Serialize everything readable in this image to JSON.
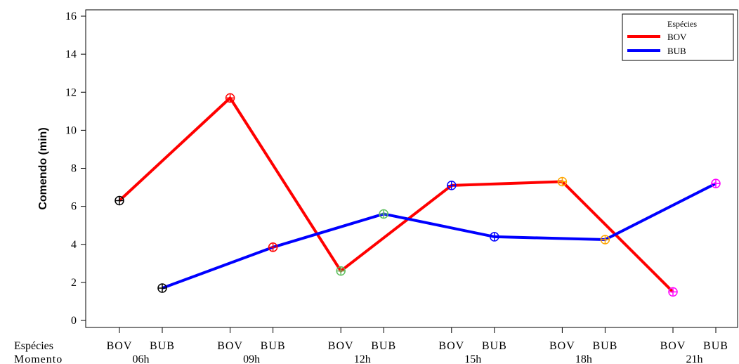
{
  "chart_data": {
    "type": "line",
    "ylabel": "Comendo (min)",
    "ylim": [
      0,
      16
    ],
    "yticks": [
      0,
      2,
      4,
      6,
      8,
      10,
      12,
      14,
      16
    ],
    "grid": false,
    "row_labels": [
      "Espécies",
      "Momento"
    ],
    "groups": [
      "06h",
      "09h",
      "12h",
      "15h",
      "18h",
      "21h"
    ],
    "species": [
      "BOV",
      "BUB"
    ],
    "series": [
      {
        "name": "BOV",
        "color": "#ff0000",
        "values": [
          6.3,
          11.7,
          2.6,
          7.1,
          7.3,
          1.5
        ]
      },
      {
        "name": "BUB",
        "color": "#0000ff",
        "values": [
          1.7,
          3.85,
          5.6,
          4.4,
          4.25,
          7.2
        ]
      }
    ],
    "point_colors": [
      "#000000",
      "#ff0000",
      "#5fbf5f",
      "#0000ff",
      "#ffa500",
      "#ff00ff"
    ],
    "legend": {
      "title": "Espécies",
      "placement": "top-right"
    }
  }
}
